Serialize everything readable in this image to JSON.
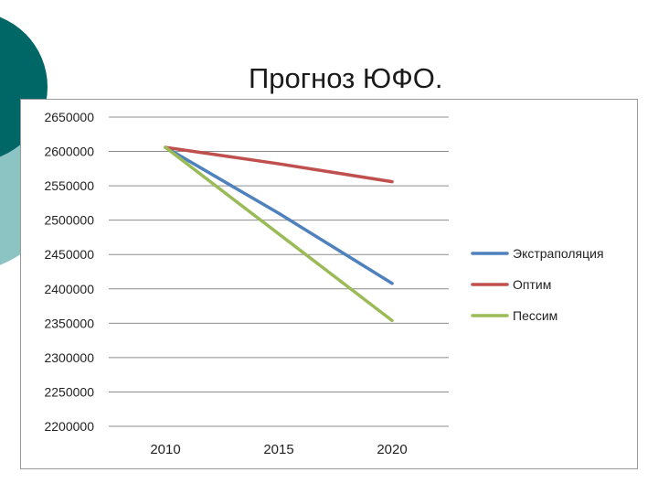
{
  "slide": {
    "title": "Прогноз ЮФО."
  },
  "colors": {
    "deco_dark": "#006666",
    "deco_light": "#8cc4c4",
    "grid": "#8c8c8c"
  },
  "chart_data": {
    "type": "line",
    "title": "",
    "xlabel": "",
    "ylabel": "",
    "categories": [
      "2010",
      "2015",
      "2020"
    ],
    "ylim": [
      2200000,
      2650000
    ],
    "yticks": [
      2650000,
      2600000,
      2550000,
      2500000,
      2450000,
      2400000,
      2350000,
      2300000,
      2250000,
      2200000
    ],
    "grid": true,
    "legend_position": "right",
    "series": [
      {
        "name": "Экстраполяция",
        "color": "#4f81bd",
        "values": [
          2606000,
          2510000,
          2408000
        ]
      },
      {
        "name": "Оптим",
        "color": "#c0504d",
        "values": [
          2606000,
          2582000,
          2556000
        ]
      },
      {
        "name": "Пессим",
        "color": "#9bbb59",
        "values": [
          2606000,
          2480000,
          2354000
        ]
      }
    ]
  }
}
